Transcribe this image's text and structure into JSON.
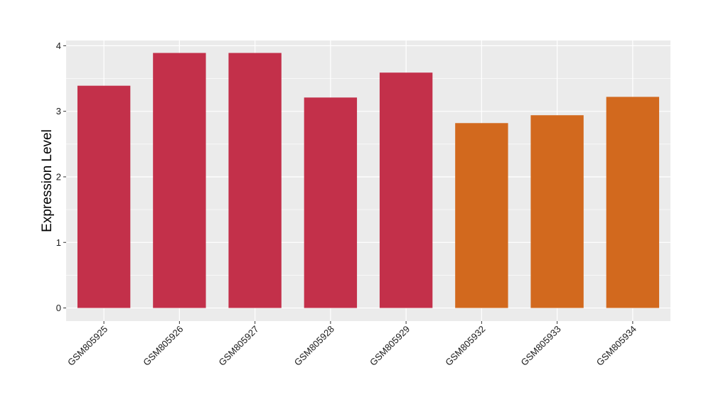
{
  "chart_data": {
    "type": "bar",
    "title": "",
    "xlabel": "",
    "ylabel": "Expression Level",
    "categories": [
      "GSM805925",
      "GSM805926",
      "GSM805927",
      "GSM805928",
      "GSM805929",
      "GSM805932",
      "GSM805933",
      "GSM805934"
    ],
    "values": [
      3.39,
      3.89,
      3.89,
      3.21,
      3.59,
      2.82,
      2.94,
      3.22
    ],
    "bar_colors": [
      "#c3304a",
      "#c3304a",
      "#c3304a",
      "#c3304a",
      "#c3304a",
      "#d2691e",
      "#d2691e",
      "#d2691e"
    ],
    "ylim": [
      -0.2,
      4.08
    ],
    "yticks": [
      0,
      1,
      2,
      3,
      4
    ],
    "ytick_labels": [
      "0",
      "1",
      "2",
      "3",
      "4"
    ],
    "grid": true,
    "legend": "none",
    "panel_background": "#ebebeb",
    "gridline_color": "#ffffff"
  }
}
